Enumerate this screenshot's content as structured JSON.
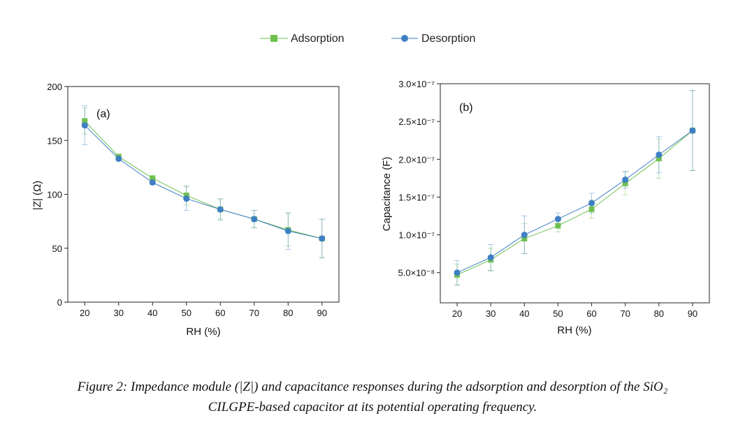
{
  "legend": [
    {
      "label": "Adsorption",
      "color": "#6fbf4f",
      "marker": "square"
    },
    {
      "label": "Desorption",
      "color": "#3f7fc4",
      "marker": "circle"
    }
  ],
  "chart_data": [
    {
      "type": "line",
      "panel_label": "(a)",
      "xlabel": "RH (%)",
      "ylabel": "|Z| (Ω)",
      "x": [
        20,
        30,
        40,
        50,
        60,
        70,
        80,
        90
      ],
      "xticks": [
        "20",
        "30",
        "40",
        "50",
        "60",
        "70",
        "80",
        "90"
      ],
      "xlim": [
        15,
        95
      ],
      "ylim": [
        0,
        200
      ],
      "yticks": [
        0,
        50,
        100,
        150,
        200
      ],
      "ytick_labels": [
        "0",
        "50",
        "100",
        "150",
        "200"
      ],
      "series": [
        {
          "name": "Adsorption",
          "values": [
            168,
            135,
            115,
            99,
            86,
            77,
            67,
            59
          ],
          "err": [
            12,
            2,
            2,
            9,
            9,
            8,
            15,
            18
          ]
        },
        {
          "name": "Desorption",
          "values": [
            164,
            133,
            111,
            96,
            86,
            77,
            66,
            59
          ],
          "err": [
            18,
            2,
            2,
            11,
            10,
            8,
            17,
            18
          ]
        }
      ]
    },
    {
      "type": "line",
      "panel_label": "(b)",
      "xlabel": "RH (%)",
      "ylabel": "Capacitance (F)",
      "x": [
        20,
        30,
        40,
        50,
        60,
        70,
        80,
        90
      ],
      "xticks": [
        "20",
        "30",
        "40",
        "50",
        "60",
        "70",
        "80",
        "90"
      ],
      "xlim": [
        15,
        95
      ],
      "ylim": [
        1e-08,
        3e-07
      ],
      "yticks": [
        5e-08,
        1e-07,
        1.5e-07,
        2e-07,
        2.5e-07,
        3e-07
      ],
      "ytick_labels": [
        "5.0×10⁻⁸",
        "1.0×10⁻⁷",
        "1.5×10⁻⁷",
        "2.0×10⁻⁷",
        "2.5×10⁻⁷",
        "3.0×10⁻⁷"
      ],
      "series": [
        {
          "name": "Adsorption",
          "values": [
            4.7e-08,
            6.7e-08,
            9.5e-08,
            1.12e-07,
            1.34e-07,
            1.68e-07,
            2.01e-07,
            2.38e-07
          ],
          "err": [
            1.4e-08,
            1.5e-08,
            2e-08,
            8e-09,
            1.2e-08,
            1.5e-08,
            2.6e-08,
            5.3e-08
          ]
        },
        {
          "name": "Desorption",
          "values": [
            5e-08,
            7e-08,
            1e-07,
            1.21e-07,
            1.42e-07,
            1.73e-07,
            2.06e-07,
            2.38e-07
          ],
          "err": [
            1.6e-08,
            1.7e-08,
            2.5e-08,
            8e-09,
            1.3e-08,
            1.1e-08,
            2.4e-08,
            5.3e-08
          ]
        }
      ]
    }
  ],
  "caption": {
    "line1": "Figure 2: Impedance module (|Z|) and capacitance responses during the adsorption and desorption of the SiO₂",
    "line2": "CILGPE-based capacitor at its potential operating frequency."
  }
}
